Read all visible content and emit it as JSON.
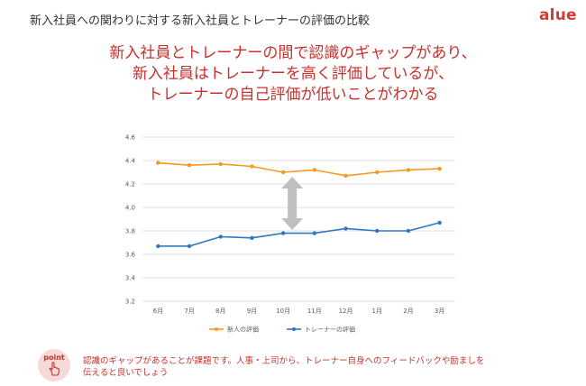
{
  "header": {
    "title": "新入社員への関わりに対する新入社員とトレーナーの評価の比較",
    "logo": "alue"
  },
  "headline": {
    "lines": [
      "新入社員とトレーナーの間で認識のギャップがあり、",
      "新入社員はトレーナーを高く評価しているが、",
      "トレーナーの自己評価が低いことがわかる"
    ]
  },
  "chart_data": {
    "type": "line",
    "categories": [
      "6月",
      "7月",
      "8月",
      "9月",
      "10月",
      "11月",
      "12月",
      "1月",
      "2月",
      "3月"
    ],
    "series": [
      {
        "name": "新人の評価",
        "color": "#f59a1c",
        "values": [
          4.38,
          4.36,
          4.37,
          4.35,
          4.3,
          4.32,
          4.27,
          4.3,
          4.32,
          4.33
        ]
      },
      {
        "name": "トレーナーの評価",
        "color": "#2e78c2",
        "values": [
          3.67,
          3.67,
          3.75,
          3.74,
          3.78,
          3.78,
          3.82,
          3.8,
          3.8,
          3.87
        ]
      }
    ],
    "yticks": [
      "4.6",
      "4.4",
      "4.2",
      "4.0",
      "3.8",
      "3.6",
      "3.4",
      "3.2"
    ],
    "ylim": [
      3.2,
      4.6
    ],
    "grid": "horizontal",
    "legend_position": "bottom",
    "annotation": "double-arrow-gap"
  },
  "footer": {
    "badge": "point",
    "note_lines": [
      "認識のギャップがあることが課題です。人事・上司から、トレーナー自身へのフィードバックや励ましを",
      "伝えると良いでしょう"
    ]
  },
  "colors": {
    "accent": "#c9302c",
    "grid": "#d9d9d9",
    "arrow": "#bfbfbf"
  }
}
